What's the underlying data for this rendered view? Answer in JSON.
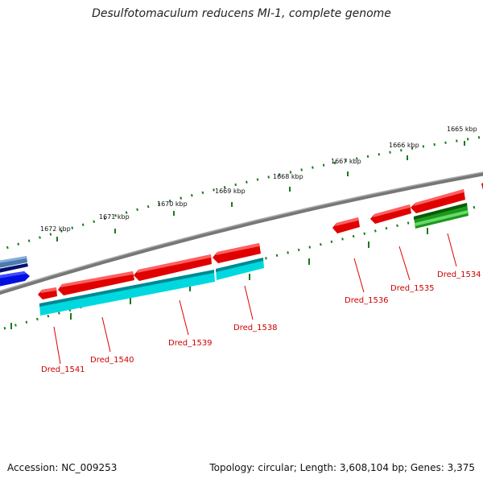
{
  "title": "Desulfotomaculum reducens MI-1, complete genome",
  "footer": {
    "accession": "Accession: NC_009253",
    "summary": "Topology: circular; Length: 3,608,104 bp; Genes: 3,375"
  },
  "scale_labels": [
    "1665 kbp",
    "1666 kbp",
    "1667 kbp",
    "1668 kbp",
    "1669 kbp",
    "1670 kbp",
    "1671 kbp",
    "1672 kbp"
  ],
  "gene_labels": [
    "Dred_1534",
    "Dred_1535",
    "Dred_1536",
    "Dred_1538",
    "Dred_1539",
    "Dred_1540",
    "Dred_1541"
  ],
  "colors": {
    "gene_forward": "#e00000",
    "gene_cds": "#00d8e0",
    "gene_green": "#1a9a1a",
    "gene_blue": "#0010e0",
    "gene_navy": "#001070",
    "gene_steel": "#4a7ab0",
    "backbone": "#777777",
    "tick": "#1a7a1a",
    "label": "#cc0000"
  }
}
